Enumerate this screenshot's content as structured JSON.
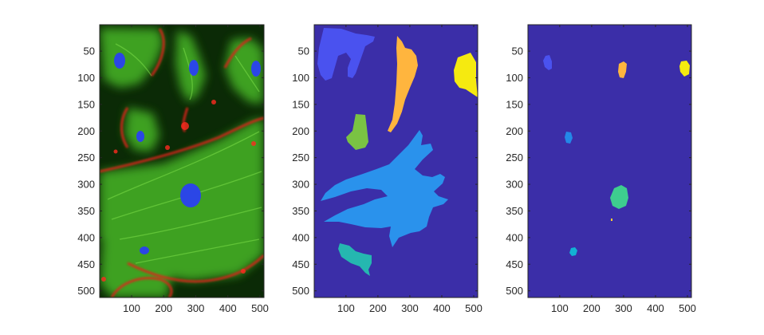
{
  "figure": {
    "background": "#ffffff",
    "axis_color": "#262626"
  },
  "chart_data": [
    {
      "type": "image",
      "description_role": "fluorescence-cells",
      "xlim": [
        1,
        512
      ],
      "ylim": [
        1,
        512
      ],
      "y_reversed": true,
      "xticks": [
        100,
        200,
        300,
        400,
        500
      ],
      "yticks": [
        50,
        100,
        150,
        200,
        250,
        300,
        350,
        400,
        450,
        500
      ],
      "colors": {
        "background": "#0b2a06",
        "actin": "#e0221a",
        "tubulin": "#4fbf2a",
        "nuclei": "#2a45e0"
      }
    },
    {
      "type": "label-map",
      "description_role": "cell-segmentation",
      "xlim": [
        1,
        512
      ],
      "ylim": [
        1,
        512
      ],
      "y_reversed": true,
      "xticks": [
        100,
        200,
        300,
        400,
        500
      ],
      "yticks": [
        50,
        100,
        150,
        200,
        250,
        300,
        350,
        400,
        450,
        500
      ],
      "background_color": "#3b2ea8",
      "regions": [
        {
          "label": 1,
          "color": "#4a52ef"
        },
        {
          "label": 2,
          "color": "#ffb53e"
        },
        {
          "label": 3,
          "color": "#f5ea10"
        },
        {
          "label": 4,
          "color": "#7ac343"
        },
        {
          "label": 5,
          "color": "#2a92ec"
        },
        {
          "label": 6,
          "color": "#25b7b0"
        }
      ]
    },
    {
      "type": "label-map",
      "description_role": "nuclei-segmentation",
      "xlim": [
        1,
        512
      ],
      "ylim": [
        1,
        512
      ],
      "y_reversed": true,
      "xticks": [
        100,
        200,
        300,
        400,
        500
      ],
      "yticks": [
        50,
        100,
        150,
        200,
        250,
        300,
        350,
        400,
        450,
        500
      ],
      "background_color": "#3b2ea8",
      "regions": [
        {
          "label": 1,
          "color": "#4a52ef"
        },
        {
          "label": 2,
          "color": "#ffb53e"
        },
        {
          "label": 3,
          "color": "#f5ea10"
        },
        {
          "label": 4,
          "color": "#2388e8"
        },
        {
          "label": 5,
          "color": "#3ecd8f"
        },
        {
          "label": 6,
          "color": "#ffd030"
        },
        {
          "label": 7,
          "color": "#12b2d4"
        }
      ]
    }
  ]
}
